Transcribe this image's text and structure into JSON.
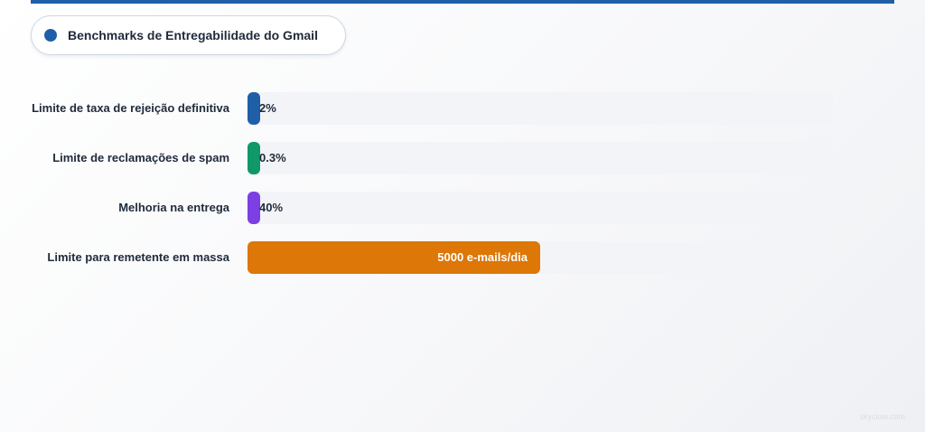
{
  "legend": {
    "title": "Benchmarks de Entregabilidade do Gmail",
    "dot_color": "#1f5fa8"
  },
  "chart_data": {
    "type": "bar",
    "orientation": "horizontal",
    "categories": [
      "Limite de taxa de rejeição definitiva",
      "Limite de reclamações de spam",
      "Melhoria na entrega",
      "Limite para remetente em massa"
    ],
    "display_labels": [
      "2%",
      "0.3%",
      "40%",
      "5000 e-mails/dia"
    ],
    "values": [
      2,
      0.3,
      40,
      5000
    ],
    "fill_fractions": [
      0.02,
      0.02,
      0.02,
      0.5
    ],
    "colors": [
      "#1f5fa8",
      "#0f9968",
      "#7b3fe4",
      "#dc7708"
    ]
  },
  "watermark": "skyciuw.com"
}
